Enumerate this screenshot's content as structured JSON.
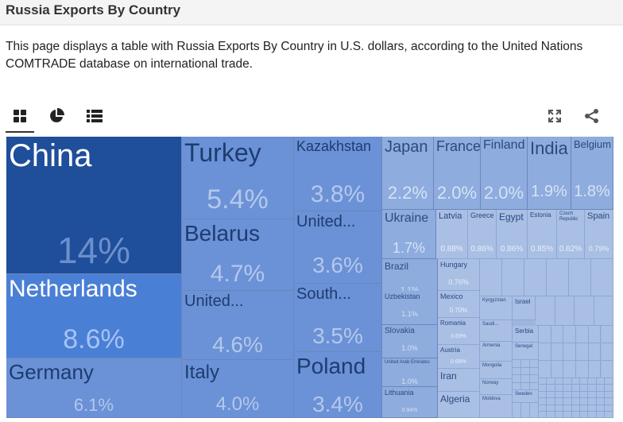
{
  "page": {
    "title": "Russia Exports By Country",
    "intro": "This page displays a table with Russia Exports By Country in U.S. dollars, according to the United Nations COMTRADE database on international trade."
  },
  "toolbar": {
    "left": [
      "treemap-view-icon",
      "pie-chart-view-icon",
      "table-view-icon"
    ],
    "right": [
      "fullscreen-icon",
      "share-icon"
    ]
  },
  "colors": {
    "dark": "#1f4e9a",
    "mid": "#4a7fd6",
    "base": "#6b91d6",
    "light": "#8eacdd",
    "pale": "#a9bfe4"
  },
  "tiles": [
    {
      "id": "china",
      "name": "China",
      "pct": "14%"
    },
    {
      "id": "netherlands",
      "name": "Netherlands",
      "pct": "8.6%"
    },
    {
      "id": "germany",
      "name": "Germany",
      "pct": "6.1%"
    },
    {
      "id": "turkey",
      "name": "Turkey",
      "pct": "5.4%"
    },
    {
      "id": "belarus",
      "name": "Belarus",
      "pct": "4.7%"
    },
    {
      "id": "united1",
      "name": "United...",
      "pct": "4.6%"
    },
    {
      "id": "italy",
      "name": "Italy",
      "pct": "4.0%"
    },
    {
      "id": "kazakhstan",
      "name": "Kazakhstan",
      "pct": "3.8%"
    },
    {
      "id": "united2",
      "name": "United...",
      "pct": "3.6%"
    },
    {
      "id": "south",
      "name": "South...",
      "pct": "3.5%"
    },
    {
      "id": "poland",
      "name": "Poland",
      "pct": "3.4%"
    },
    {
      "id": "japan",
      "name": "Japan",
      "pct": "2.2%"
    },
    {
      "id": "france",
      "name": "France",
      "pct": "2.0%"
    },
    {
      "id": "finland",
      "name": "Finland",
      "pct": "2.0%"
    },
    {
      "id": "india",
      "name": "India",
      "pct": "1.9%"
    },
    {
      "id": "belgium",
      "name": "Belgium",
      "pct": "1.8%"
    },
    {
      "id": "ukraine",
      "name": "Ukraine",
      "pct": "1.7%"
    },
    {
      "id": "latvia",
      "name": "Latvia",
      "pct": "0.88%"
    },
    {
      "id": "greece",
      "name": "Greece",
      "pct": "0.86%"
    },
    {
      "id": "egypt",
      "name": "Egypt",
      "pct": "0.86%"
    },
    {
      "id": "estonia",
      "name": "Estonia",
      "pct": "0.85%"
    },
    {
      "id": "czech",
      "name": "Czech Republic",
      "pct": "0.82%"
    },
    {
      "id": "spain",
      "name": "Spain",
      "pct": "0.79%"
    },
    {
      "id": "brazil",
      "name": "Brazil",
      "pct": "1.1%"
    },
    {
      "id": "hungary",
      "name": "Hungary",
      "pct": "0.76%"
    },
    {
      "id": "uzbekistan",
      "name": "Uzbekistan",
      "pct": "1.1%"
    },
    {
      "id": "mexico",
      "name": "Mexico",
      "pct": "0.70%"
    },
    {
      "id": "romania",
      "name": "Romania",
      "pct": "0.69%"
    },
    {
      "id": "slovakia",
      "name": "Slovakia",
      "pct": "1.0%"
    },
    {
      "id": "austria",
      "name": "Austria",
      "pct": "0.68%"
    },
    {
      "id": "uae",
      "name": "United Arab Emirates",
      "pct": "1.0%"
    },
    {
      "id": "iran",
      "name": "Iran",
      "pct": ""
    },
    {
      "id": "lithuania",
      "name": "Lithuania",
      "pct": "0.94%"
    },
    {
      "id": "algeria",
      "name": "Algeria",
      "pct": ""
    },
    {
      "id": "kyrgyzstan",
      "name": "Kyrgyzstan",
      "pct": ""
    },
    {
      "id": "israel",
      "name": "Israel",
      "pct": ""
    },
    {
      "id": "saudi",
      "name": "Saudi...",
      "pct": ""
    },
    {
      "id": "armenia",
      "name": "Armenia",
      "pct": ""
    },
    {
      "id": "serbia",
      "name": "Serbia",
      "pct": ""
    },
    {
      "id": "senegal",
      "name": "Senegal",
      "pct": ""
    },
    {
      "id": "mongolia",
      "name": "Mongolia",
      "pct": ""
    },
    {
      "id": "norway",
      "name": "Norway",
      "pct": ""
    },
    {
      "id": "sweden",
      "name": "Sweden",
      "pct": ""
    },
    {
      "id": "moldova",
      "name": "Moldova",
      "pct": ""
    }
  ]
}
